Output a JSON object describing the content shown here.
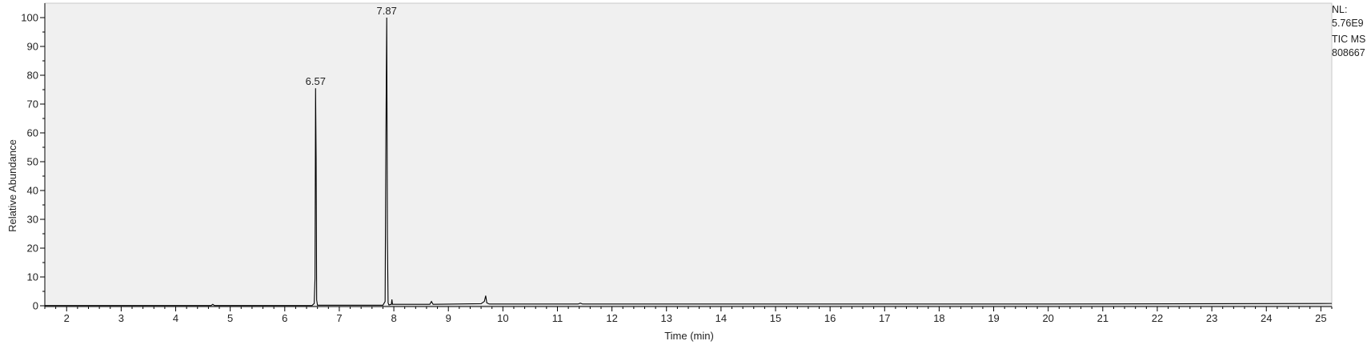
{
  "side_info": {
    "nl_label": "NL:",
    "nl_value": "5.76E9",
    "trace": "TIC  MS",
    "file_id": "808667"
  },
  "chart_data": {
    "type": "line",
    "title": "",
    "xlabel": "Time (min)",
    "ylabel": "Relative Abundance",
    "xlim": [
      1.6,
      25.2
    ],
    "ylim": [
      0,
      100
    ],
    "x_ticks": [
      2,
      3,
      4,
      5,
      6,
      7,
      8,
      9,
      10,
      11,
      12,
      13,
      14,
      15,
      16,
      17,
      18,
      19,
      20,
      21,
      22,
      23,
      24,
      25
    ],
    "y_ticks": [
      0,
      10,
      20,
      30,
      40,
      50,
      60,
      70,
      80,
      90,
      100
    ],
    "grid": false,
    "series": [
      {
        "color": "#000000",
        "points": [
          [
            1.6,
            0.1
          ],
          [
            4.65,
            0.1
          ],
          [
            4.68,
            0.5
          ],
          [
            4.71,
            0.1
          ],
          [
            6.5,
            0.1
          ],
          [
            6.54,
            0.8
          ],
          [
            6.555,
            9.5
          ],
          [
            6.565,
            75.5
          ],
          [
            6.575,
            51.5
          ],
          [
            6.585,
            2.0
          ],
          [
            6.6,
            0.2
          ],
          [
            7.8,
            0.2
          ],
          [
            7.84,
            1.5
          ],
          [
            7.855,
            59.5
          ],
          [
            7.87,
            100
          ],
          [
            7.882,
            24.0
          ],
          [
            7.895,
            1.0
          ],
          [
            7.91,
            0.3
          ],
          [
            7.955,
            0.5
          ],
          [
            7.965,
            2.2
          ],
          [
            7.975,
            0.5
          ],
          [
            8.66,
            0.5
          ],
          [
            8.69,
            1.5
          ],
          [
            8.72,
            0.5
          ],
          [
            9.6,
            0.7
          ],
          [
            9.66,
            1.5
          ],
          [
            9.685,
            3.5
          ],
          [
            9.705,
            1.0
          ],
          [
            9.75,
            0.6
          ],
          [
            11.38,
            0.6
          ],
          [
            11.42,
            0.9
          ],
          [
            11.46,
            0.6
          ],
          [
            20.0,
            0.6
          ],
          [
            25.2,
            0.8
          ]
        ]
      }
    ],
    "annotations": [
      {
        "x": 6.565,
        "y": 75.5,
        "text": "6.57"
      },
      {
        "x": 7.87,
        "y": 100,
        "text": "7.87"
      }
    ]
  }
}
